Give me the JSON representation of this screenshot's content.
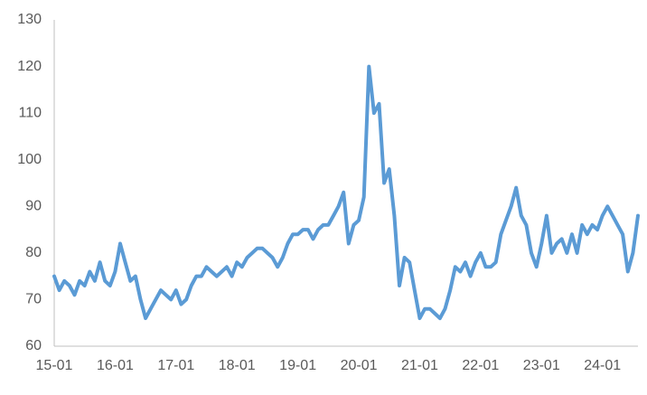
{
  "chart_data": {
    "type": "line",
    "categories": [
      "15-01",
      null,
      null,
      null,
      null,
      null,
      null,
      null,
      null,
      null,
      null,
      null,
      "16-01",
      null,
      null,
      null,
      null,
      null,
      null,
      null,
      null,
      null,
      null,
      null,
      "17-01",
      null,
      null,
      null,
      null,
      null,
      null,
      null,
      null,
      null,
      null,
      null,
      "18-01",
      null,
      null,
      null,
      null,
      null,
      null,
      null,
      null,
      null,
      null,
      null,
      "19-01",
      null,
      null,
      null,
      null,
      null,
      null,
      null,
      null,
      null,
      null,
      null,
      "20-01",
      null,
      null,
      null,
      null,
      null,
      null,
      null,
      null,
      null,
      null,
      null,
      "21-01",
      null,
      null,
      null,
      null,
      null,
      null,
      null,
      null,
      null,
      null,
      null,
      "22-01",
      null,
      null,
      null,
      null,
      null,
      null,
      null,
      null,
      null,
      null,
      null,
      "23-01",
      null,
      null,
      null,
      null,
      null,
      null,
      null,
      null,
      null,
      null,
      null,
      "24-01",
      null,
      null,
      null,
      null,
      null,
      null,
      null
    ],
    "values": [
      75,
      72,
      74,
      73,
      71,
      74,
      73,
      76,
      74,
      78,
      74,
      73,
      76,
      82,
      78,
      74,
      75,
      70,
      66,
      68,
      70,
      72,
      71,
      70,
      72,
      69,
      70,
      73,
      75,
      75,
      77,
      76,
      75,
      76,
      77,
      75,
      78,
      77,
      79,
      80,
      81,
      81,
      80,
      79,
      77,
      79,
      82,
      84,
      84,
      85,
      85,
      83,
      85,
      86,
      86,
      88,
      90,
      93,
      82,
      86,
      87,
      92,
      120,
      110,
      112,
      95,
      98,
      88,
      73,
      79,
      78,
      72,
      66,
      68,
      68,
      67,
      66,
      68,
      72,
      77,
      76,
      78,
      75,
      78,
      80,
      77,
      77,
      78,
      84,
      87,
      90,
      94,
      88,
      86,
      80,
      77,
      82,
      88,
      80,
      82,
      83,
      80,
      84,
      80,
      86,
      84,
      86,
      85,
      88,
      90,
      88,
      86,
      84,
      76,
      80,
      88
    ],
    "color": "#5b9bd5",
    "ylim": [
      60,
      130
    ],
    "yticks": [
      60,
      70,
      80,
      90,
      100,
      110,
      120,
      130
    ],
    "grid": false
  }
}
